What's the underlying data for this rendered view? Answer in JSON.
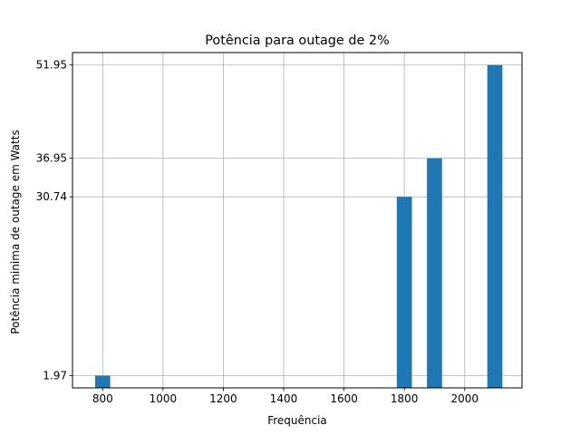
{
  "chart_data": {
    "type": "bar",
    "title": "Potência para outage de 2%",
    "xlabel": "Frequência",
    "ylabel": "Potência minima de outage em Watts",
    "x": [
      800,
      1800,
      1900,
      2100
    ],
    "values": [
      1.97,
      30.74,
      36.95,
      51.95
    ],
    "bar_width": 50,
    "bar_color": "#1f77b4",
    "xlim": [
      700,
      2190
    ],
    "ylim": [
      0,
      53.95
    ],
    "xticks": [
      800,
      1000,
      1200,
      1400,
      1600,
      1800,
      2000
    ],
    "yticks": [
      1.97,
      30.74,
      36.95,
      51.95
    ],
    "ytick_labels": [
      "1.97",
      "30.74",
      "36.95",
      "51.95"
    ],
    "grid": true,
    "grid_color": "#b0b0b0"
  }
}
